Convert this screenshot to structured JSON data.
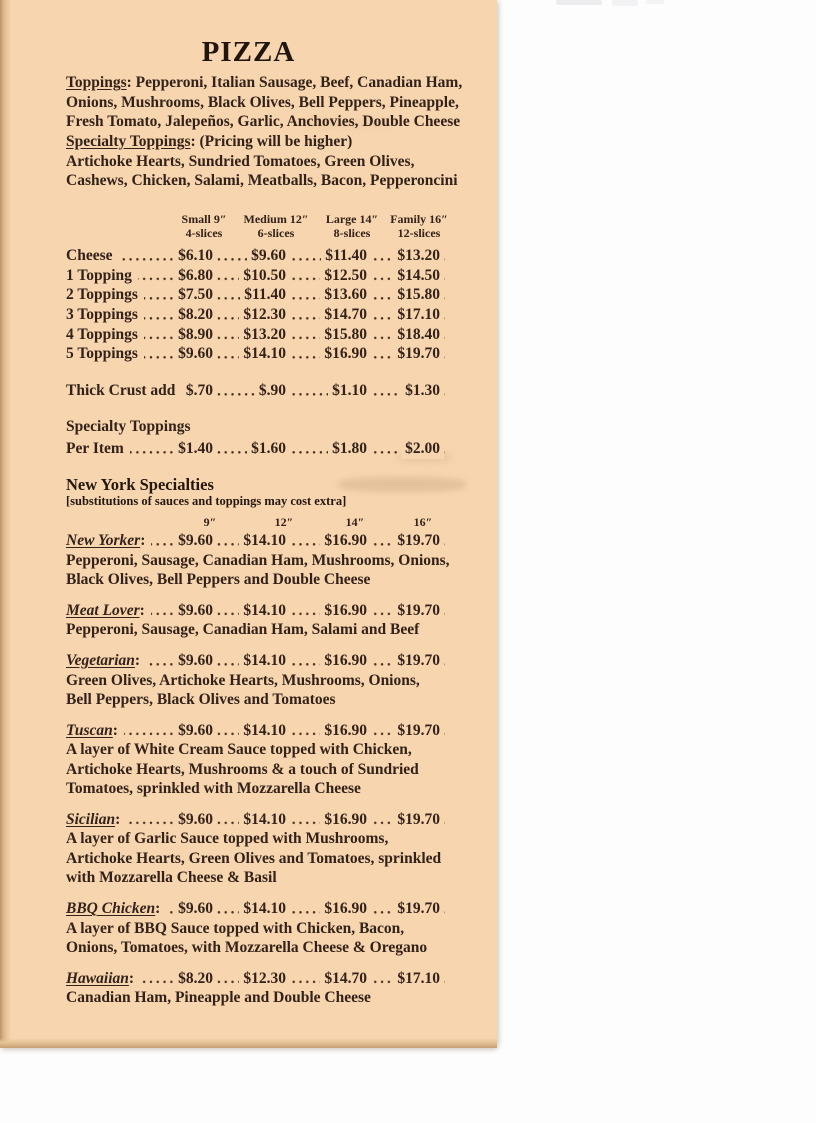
{
  "menu": {
    "title": "PIZZA",
    "toppings": {
      "label": "Toppings",
      "text": ": Pepperoni, Italian Sausage, Beef, Canadian Ham,\nOnions, Mushrooms, Black Olives, Bell Peppers, Pineapple,\nFresh Tomato, Jalepeños, Garlic, Anchovies, Double Cheese"
    },
    "specialty_toppings": {
      "label": "Specialty Toppings",
      "note": ": (Pricing will be higher)",
      "text": "\nArtichoke Hearts, Sundried Tomatoes, Green Olives,\nCashews, Chicken, Salami, Meatballs, Bacon, Pepperoncini"
    },
    "size_table": {
      "columns": [
        {
          "size": "Small 9″",
          "slices": "4-slices"
        },
        {
          "size": "Medium 12″",
          "slices": "6-slices"
        },
        {
          "size": "Large 14″",
          "slices": "8-slices"
        },
        {
          "size": "Family 16″",
          "slices": "12-slices"
        }
      ],
      "rows": [
        {
          "label": "Cheese",
          "prices": [
            "$6.10",
            "$9.60",
            "$11.40",
            "$13.20"
          ]
        },
        {
          "label": "1 Topping",
          "prices": [
            "$6.80",
            "$10.50",
            "$12.50",
            "$14.50"
          ]
        },
        {
          "label": "2 Toppings",
          "prices": [
            "$7.50",
            "$11.40",
            "$13.60",
            "$15.80"
          ]
        },
        {
          "label": "3 Toppings",
          "prices": [
            "$8.20",
            "$12.30",
            "$14.70",
            "$17.10"
          ]
        },
        {
          "label": "4 Toppings",
          "prices": [
            "$8.90",
            "$13.20",
            "$15.80",
            "$18.40"
          ]
        },
        {
          "label": "5 Toppings",
          "prices": [
            "$9.60",
            "$14.10",
            "$16.90",
            "$19.70"
          ]
        }
      ]
    },
    "thick_crust": {
      "label": "Thick Crust add",
      "prices": [
        "$.70",
        "$.90",
        "$1.10",
        "$1.30"
      ]
    },
    "specialty_per_item": {
      "heading": "Specialty Toppings",
      "label": "Per Item",
      "prices": [
        "$1.40",
        "$1.60",
        "$1.80",
        "$2.00"
      ]
    },
    "ny_specialties": {
      "heading": "New York Specialties",
      "subheading": "[substitutions of sauces and toppings may cost extra]",
      "sizes": [
        "9″",
        "12″",
        "14″",
        "16″"
      ],
      "items": [
        {
          "name": "New Yorker",
          "prices": [
            "$9.60",
            "$14.10",
            "$16.90",
            "$19.70"
          ],
          "description": "Pepperoni, Sausage, Canadian Ham, Mushrooms, Onions,\nBlack Olives, Bell Peppers and Double Cheese"
        },
        {
          "name": "Meat Lover",
          "prices": [
            "$9.60",
            "$14.10",
            "$16.90",
            "$19.70"
          ],
          "description": "Pepperoni, Sausage, Canadian Ham, Salami and Beef"
        },
        {
          "name": "Vegetarian",
          "prices": [
            "$9.60",
            "$14.10",
            "$16.90",
            "$19.70"
          ],
          "description": "Green Olives, Artichoke Hearts, Mushrooms, Onions,\nBell Peppers, Black Olives and Tomatoes"
        },
        {
          "name": "Tuscan",
          "prices": [
            "$9.60",
            "$14.10",
            "$16.90",
            "$19.70"
          ],
          "description": "A layer of White Cream Sauce topped with Chicken,\nArtichoke Hearts, Mushrooms & a touch of Sundried\nTomatoes, sprinkled with Mozzarella Cheese"
        },
        {
          "name": "Sicilian",
          "prices": [
            "$9.60",
            "$14.10",
            "$16.90",
            "$19.70"
          ],
          "description": "A layer of Garlic Sauce topped with Mushrooms,\nArtichoke Hearts, Green Olives and Tomatoes, sprinkled\nwith Mozzarella Cheese & Basil"
        },
        {
          "name": "BBQ Chicken",
          "prices": [
            "$9.60",
            "$14.10",
            "$16.90",
            "$19.70"
          ],
          "description": "A layer of BBQ Sauce topped with Chicken, Bacon,\nOnions, Tomatoes, with Mozzarella Cheese & Oregano"
        },
        {
          "name": "Hawaiian",
          "prices": [
            "$8.20",
            "$12.30",
            "$14.70",
            "$17.10"
          ],
          "description": "Canadian Ham, Pineapple and Double Cheese"
        }
      ]
    }
  }
}
